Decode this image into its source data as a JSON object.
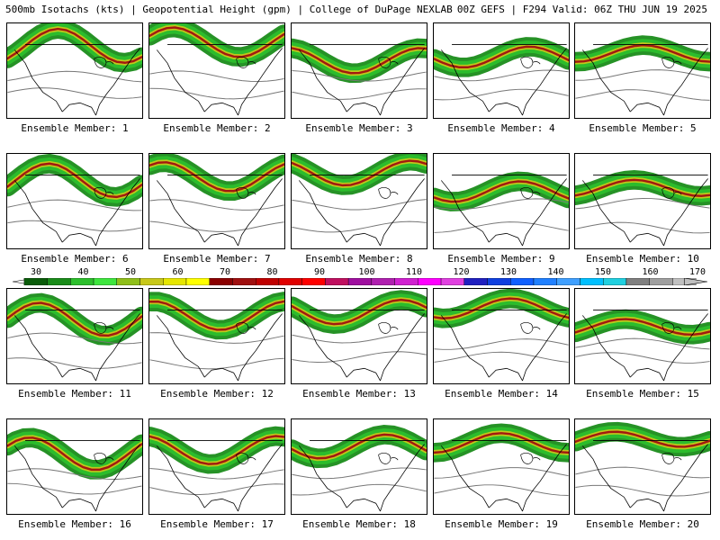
{
  "header": {
    "left": "500mb Isotachs (kts) | Geopotential Height (gpm) | College of DuPage NEXLAB",
    "right": "00Z GEFS | F294 Valid: 06Z THU JUN 19 2025"
  },
  "members": [
    {
      "label": "Ensemble Member: 1"
    },
    {
      "label": "Ensemble Member: 2"
    },
    {
      "label": "Ensemble Member: 3"
    },
    {
      "label": "Ensemble Member: 4"
    },
    {
      "label": "Ensemble Member: 5"
    },
    {
      "label": "Ensemble Member: 6"
    },
    {
      "label": "Ensemble Member: 7"
    },
    {
      "label": "Ensemble Member: 8"
    },
    {
      "label": "Ensemble Member: 9"
    },
    {
      "label": "Ensemble Member: 10"
    },
    {
      "label": "Ensemble Member: 11"
    },
    {
      "label": "Ensemble Member: 12"
    },
    {
      "label": "Ensemble Member: 13"
    },
    {
      "label": "Ensemble Member: 14"
    },
    {
      "label": "Ensemble Member: 15"
    },
    {
      "label": "Ensemble Member: 16"
    },
    {
      "label": "Ensemble Member: 17"
    },
    {
      "label": "Ensemble Member: 18"
    },
    {
      "label": "Ensemble Member: 19"
    },
    {
      "label": "Ensemble Member: 20"
    }
  ],
  "colorbar": {
    "ticks": [
      "30",
      "40",
      "50",
      "60",
      "70",
      "80",
      "90",
      "100",
      "110",
      "120",
      "130",
      "140",
      "150",
      "160",
      "170"
    ],
    "colors": [
      "#0a5c0a",
      "#1a8c1a",
      "#2cbf2c",
      "#3ee63e",
      "#8fbf1a",
      "#c8c81a",
      "#e6e600",
      "#ffff00",
      "#8b0000",
      "#a01010",
      "#c00000",
      "#e00000",
      "#ff0000",
      "#c01060",
      "#a010a0",
      "#b020b0",
      "#d020d0",
      "#ff00ff",
      "#e040e0",
      "#2020c0",
      "#1040e0",
      "#1060ff",
      "#2080ff",
      "#40a0ff",
      "#00c0ff",
      "#20d0e0",
      "#808080",
      "#a0a0a0",
      "#c0c0c0"
    ]
  }
}
